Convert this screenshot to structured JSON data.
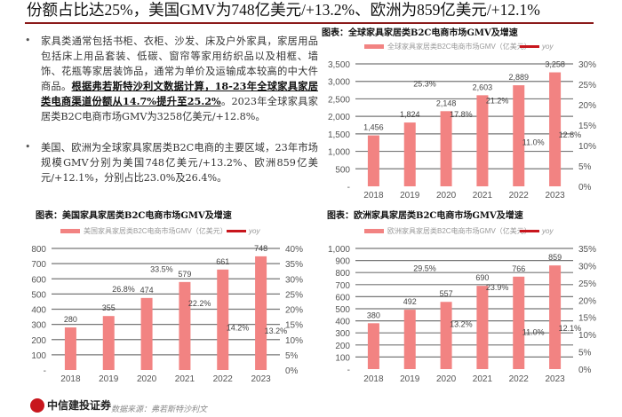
{
  "headline": "份额占比达25%，美国GMV为748亿美元/+13.2%、欧洲为859亿美元/+12.1%",
  "paragraphs": [
    {
      "bullet": "•",
      "pre": "家具类通常包括书柜、衣柜、沙发、床及户外家具，家居用品包括床上用品套装、低碳、窗帘等家用纺织品以及相框、墙饰、花瓶等家居装饰品，通常为单价及运输成本较高的中大件商品。",
      "bold": "根据弗若斯特沙利文数据计算，18-23年全球家具家居类电商渠道份额从14.7%提升至25.2%",
      "post": "。2023年全球家具家居类B2C电商市场GMV为3258亿美元/+12.8%。"
    },
    {
      "bullet": "•",
      "pre": "美国、欧洲为全球家具家居类B2C电商的主要区域，23年市场规模GMV分别为美国748亿美元/+13.2%、欧洲859亿美元/+12.1%，分别占比23.0%及26.4%。",
      "bold": "",
      "post": ""
    }
  ],
  "footer": {
    "logo_text": "中信建投证券",
    "source": "数据来源：弗若斯特沙利文"
  },
  "colors": {
    "bar": "#f28382",
    "line": "#c8161d",
    "rule": "#8b1a1a"
  },
  "chart_data": [
    {
      "type": "bar+line",
      "title": "图表：全球家具家居类B2C电商市场GMV及增速",
      "bar_legend": "全球家具家居类B2C电商市场GMV（亿美元）",
      "line_legend": "yoy",
      "categories": [
        "2018",
        "2019",
        "2020",
        "2021",
        "2022",
        "2023"
      ],
      "bar_values": [
        1456,
        1824,
        2148,
        2603,
        2889,
        3258
      ],
      "bar_labels": [
        "1,456",
        "1,824",
        "2,148",
        "2,603",
        "2,889",
        "3,258"
      ],
      "line_values": [
        null,
        25.3,
        17.8,
        21.2,
        11.0,
        12.8
      ],
      "line_labels": [
        "",
        "25.3%",
        "17.8%",
        "21.2%",
        "11.0%",
        "12.8%"
      ],
      "ylim": [
        0,
        3500
      ],
      "yticks": [
        "-",
        "500",
        "1,000",
        "1,500",
        "2,000",
        "2,500",
        "3,000",
        "3,500"
      ],
      "y2lim": [
        0,
        30
      ],
      "y2ticks": [
        "0%",
        "5%",
        "10%",
        "15%",
        "20%",
        "25%",
        "30%"
      ],
      "grid": true,
      "legend": "top"
    },
    {
      "type": "bar+line",
      "title": "图表：美国家具家居类B2C电商市场GMV及增速",
      "bar_legend": "美国家具家居类B2C电商市场GMV（亿美元）",
      "line_legend": "yoy",
      "categories": [
        "2018",
        "2019",
        "2020",
        "2021",
        "2022",
        "2023"
      ],
      "bar_values": [
        280,
        355,
        474,
        579,
        661,
        748
      ],
      "bar_labels": [
        "280",
        "355",
        "474",
        "579",
        "661",
        "748"
      ],
      "line_values": [
        null,
        26.8,
        33.5,
        22.2,
        14.2,
        13.2
      ],
      "line_labels": [
        "",
        "26.8%",
        "33.5%",
        "22.2%",
        "14.2%",
        "13.2%"
      ],
      "ylim": [
        0,
        800
      ],
      "yticks": [
        "-",
        "100",
        "200",
        "300",
        "400",
        "500",
        "600",
        "700",
        "800"
      ],
      "y2lim": [
        0,
        40
      ],
      "y2ticks": [
        "0%",
        "5%",
        "10%",
        "15%",
        "20%",
        "25%",
        "30%",
        "35%",
        "40%"
      ],
      "grid": true,
      "legend": "top"
    },
    {
      "type": "bar+line",
      "title": "图表：欧洲家具家居类B2C电商市场GMV及增速",
      "bar_legend": "欧洲家具家居类B2C电商市场GMV（亿美元）",
      "line_legend": "yoy",
      "categories": [
        "2018",
        "2019",
        "2020",
        "2021",
        "2022",
        "2023"
      ],
      "bar_values": [
        380,
        492,
        557,
        690,
        766,
        859
      ],
      "bar_labels": [
        "380",
        "492",
        "557",
        "690",
        "766",
        "859"
      ],
      "line_values": [
        null,
        29.5,
        13.2,
        23.9,
        11.0,
        12.1
      ],
      "line_labels": [
        "",
        "29.5%",
        "13.2%",
        "23.9%",
        "11.0%",
        "12.1%"
      ],
      "ylim": [
        0,
        1000
      ],
      "yticks": [
        "-",
        "100",
        "200",
        "300",
        "400",
        "500",
        "600",
        "700",
        "800",
        "900",
        "1,000"
      ],
      "y2lim": [
        0,
        35
      ],
      "y2ticks": [
        "0%",
        "5%",
        "10%",
        "15%",
        "20%",
        "25%",
        "30%",
        "35%"
      ],
      "grid": true,
      "legend": "top"
    }
  ]
}
